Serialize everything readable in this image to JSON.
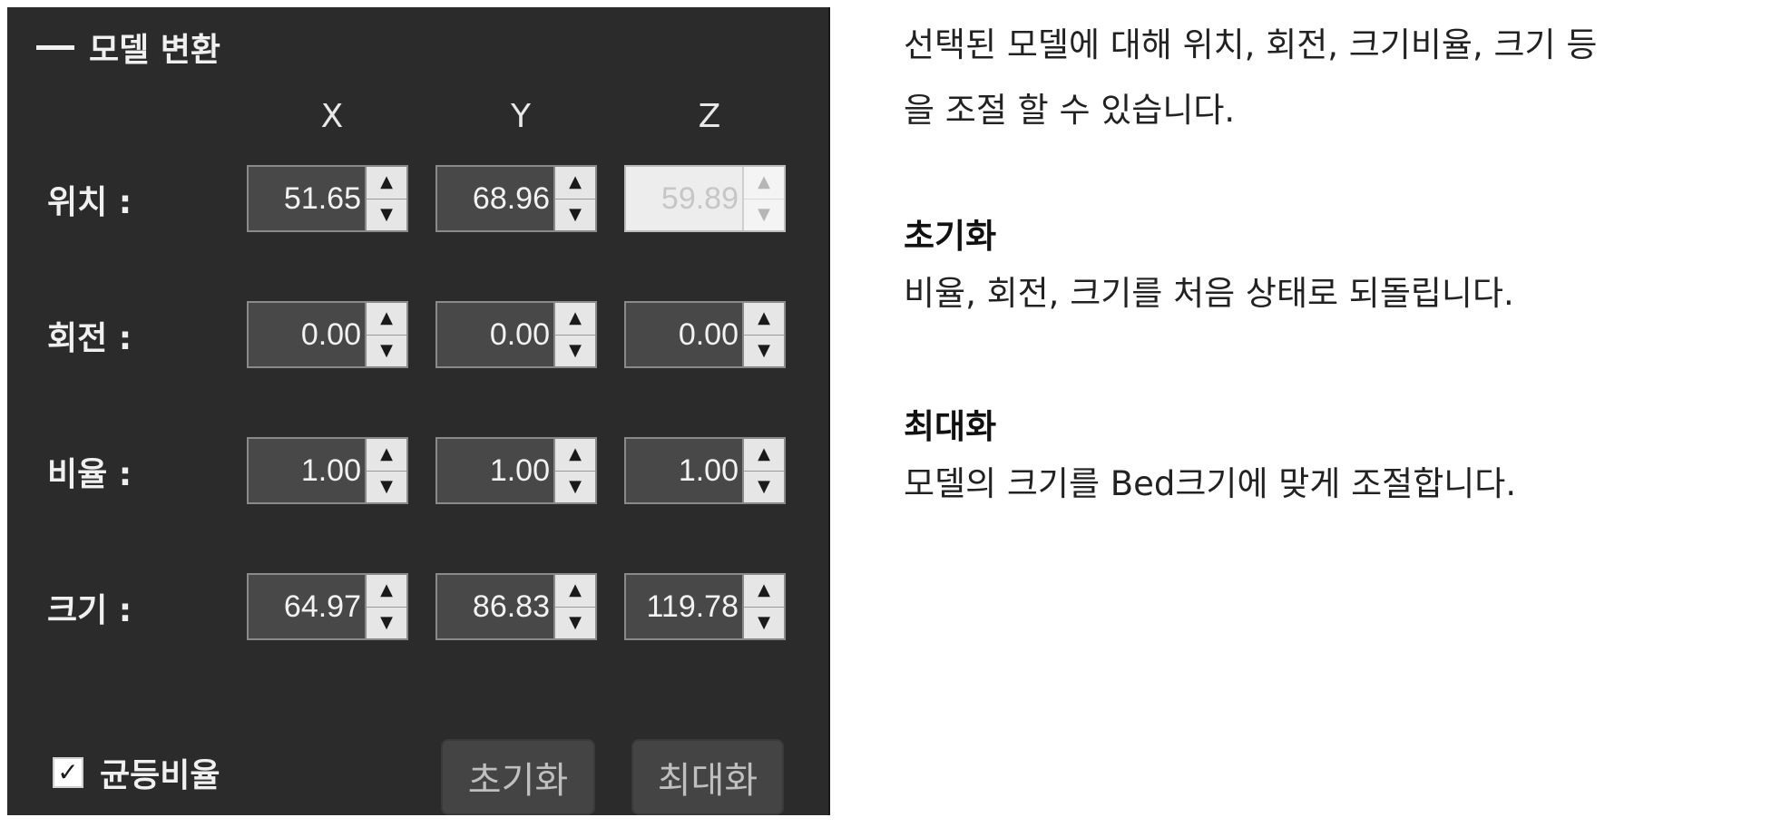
{
  "panel": {
    "title": "모델 변환",
    "axes": [
      "X",
      "Y",
      "Z"
    ],
    "rows": [
      {
        "label": "위치 :",
        "values": [
          "51.65",
          "68.96",
          "59.89"
        ],
        "z_disabled": true
      },
      {
        "label": "회전 :",
        "values": [
          "0.00",
          "0.00",
          "0.00"
        ]
      },
      {
        "label": "비율 :",
        "values": [
          "1.00",
          "1.00",
          "1.00"
        ]
      },
      {
        "label": "크기 :",
        "values": [
          "64.97",
          "86.83",
          "119.78"
        ]
      }
    ],
    "uniform_scale": {
      "label": "균등비율",
      "checked": true
    },
    "reset_button": "초기화",
    "maximize_button": "최대화"
  },
  "description": {
    "intro_line1": "선택된 모델에 대해 위치, 회전, 크기비율, 크기 등",
    "intro_line2": "을 조절 할 수 있습니다.",
    "reset_title": "초기화",
    "reset_text": "비율, 회전, 크기를 처음 상태로 되돌립니다.",
    "max_title": "최대화",
    "max_text": "모델의 크기를 Bed크기에 맞게 조절합니다."
  },
  "icons": {
    "up": "spin-up-arrow-icon",
    "down": "spin-down-arrow-icon",
    "check": "checkmark-icon",
    "collapse": "collapse-dash-icon"
  }
}
